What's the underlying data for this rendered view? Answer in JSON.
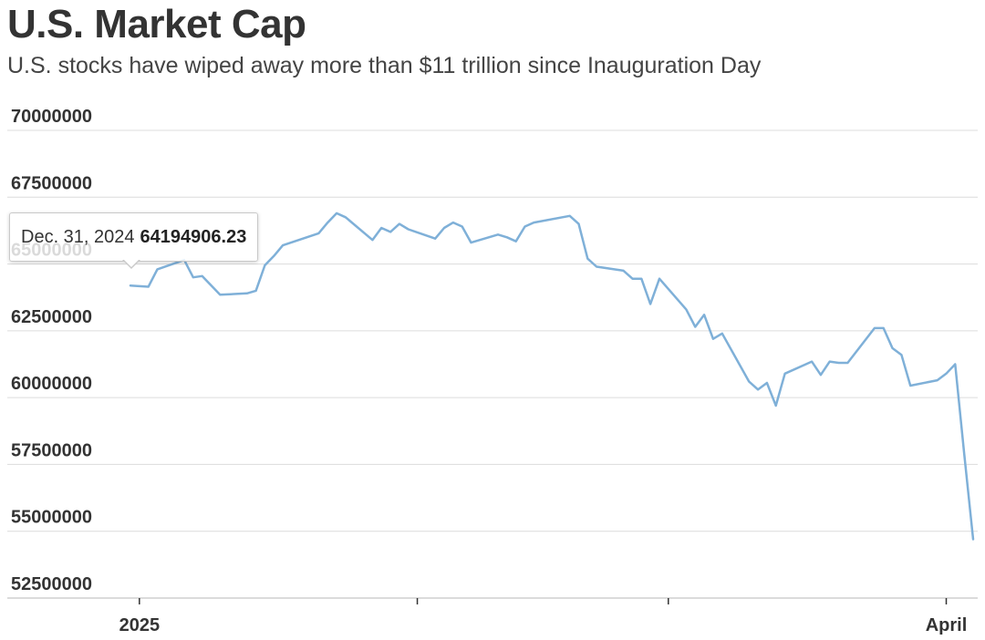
{
  "header": {
    "title": "U.S. Market Cap",
    "subtitle": "U.S. stocks have wiped away more than $11 trillion since Inauguration Day"
  },
  "tooltip": {
    "date": "Dec. 31, 2024",
    "value": "64194906.23"
  },
  "colors": {
    "series": "#7fb0d8",
    "text": "#333333",
    "grid": "#dcdcdc"
  },
  "chart_data": {
    "type": "line",
    "title": "U.S. Market Cap",
    "subtitle": "U.S. stocks have wiped away more than $11 trillion since Inauguration Day",
    "xlabel": "",
    "ylabel": "",
    "ylim": [
      52500000,
      70000000
    ],
    "yticks": [
      70000000,
      67500000,
      65000000,
      62500000,
      60000000,
      57500000,
      55000000,
      52500000
    ],
    "ytick_labels": [
      "70000000",
      "67500000",
      "65000000",
      "62500000",
      "60000000",
      "57500000",
      "55000000",
      "52500000"
    ],
    "xlim": [
      "2024-12-31",
      "2025-04-04"
    ],
    "xticks": [
      "2025-01-01",
      "2025-02-01",
      "2025-03-01",
      "2025-04-01"
    ],
    "xtick_labels": [
      "2025",
      "",
      "",
      "April"
    ],
    "grid": true,
    "legend": "none",
    "series": [
      {
        "x": [
          "2024-12-31",
          "2025-01-02",
          "2025-01-03",
          "2025-01-06",
          "2025-01-07",
          "2025-01-08",
          "2025-01-10",
          "2025-01-13",
          "2025-01-14",
          "2025-01-15",
          "2025-01-16",
          "2025-01-17",
          "2025-01-21",
          "2025-01-22",
          "2025-01-23",
          "2025-01-24",
          "2025-01-27",
          "2025-01-28",
          "2025-01-29",
          "2025-01-30",
          "2025-01-31",
          "2025-02-03",
          "2025-02-04",
          "2025-02-05",
          "2025-02-06",
          "2025-02-07",
          "2025-02-10",
          "2025-02-11",
          "2025-02-12",
          "2025-02-13",
          "2025-02-14",
          "2025-02-18",
          "2025-02-19",
          "2025-02-20",
          "2025-02-21",
          "2025-02-24",
          "2025-02-25",
          "2025-02-26",
          "2025-02-27",
          "2025-02-28",
          "2025-03-03",
          "2025-03-04",
          "2025-03-05",
          "2025-03-06",
          "2025-03-07",
          "2025-03-10",
          "2025-03-11",
          "2025-03-12",
          "2025-03-13",
          "2025-03-14",
          "2025-03-17",
          "2025-03-18",
          "2025-03-19",
          "2025-03-20",
          "2025-03-21",
          "2025-03-24",
          "2025-03-25",
          "2025-03-26",
          "2025-03-27",
          "2025-03-28",
          "2025-03-31",
          "2025-04-01",
          "2025-04-02",
          "2025-04-03",
          "2025-04-04"
        ],
        "values": [
          64194906.23,
          64150000,
          64800000,
          65150000,
          64500000,
          64550000,
          63850000,
          63900000,
          64000000,
          64950000,
          65300000,
          65700000,
          66150000,
          66550000,
          66900000,
          66750000,
          65900000,
          66350000,
          66200000,
          66500000,
          66300000,
          65950000,
          66350000,
          66550000,
          66400000,
          65800000,
          66100000,
          66000000,
          65850000,
          66400000,
          66550000,
          66800000,
          66500000,
          65200000,
          64900000,
          64750000,
          64450000,
          64450000,
          63500000,
          64450000,
          63300000,
          62650000,
          63100000,
          62200000,
          62400000,
          60600000,
          60300000,
          60550000,
          59700000,
          60900000,
          61350000,
          60850000,
          61350000,
          61300000,
          61300000,
          62600000,
          62600000,
          61850000,
          61600000,
          60450000,
          60650000,
          60900000,
          61250000,
          57900000,
          54700000
        ]
      }
    ]
  }
}
